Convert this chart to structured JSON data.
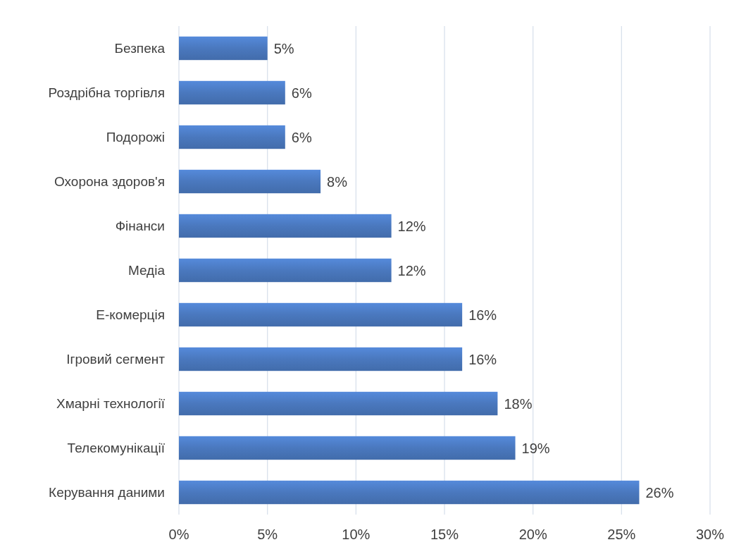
{
  "chart_data": {
    "type": "bar",
    "orientation": "horizontal",
    "categories": [
      "Безпека",
      "Роздрібна торгівля",
      "Подорожі",
      "Охорона здоров'я",
      "Фінанси",
      "Медіа",
      "Е-комерція",
      "Ігровий сегмент",
      "Хмарні технології",
      "Телекомунікації",
      "Керування даними"
    ],
    "values": [
      5,
      6,
      6,
      8,
      12,
      12,
      16,
      16,
      18,
      19,
      26
    ],
    "value_labels": [
      "5%",
      "6%",
      "6%",
      "8%",
      "12%",
      "12%",
      "16%",
      "16%",
      "18%",
      "19%",
      "26%"
    ],
    "color": "#4a78be",
    "xlim": [
      0,
      30
    ],
    "xticks": [
      {
        "value": 0,
        "label": "0%"
      },
      {
        "value": 5,
        "label": "5%"
      },
      {
        "value": 10,
        "label": "10%"
      },
      {
        "value": 15,
        "label": "15%"
      },
      {
        "value": 20,
        "label": "20%"
      },
      {
        "value": 25,
        "label": "25%"
      },
      {
        "value": 30,
        "label": "30%"
      }
    ],
    "grid": "x"
  }
}
